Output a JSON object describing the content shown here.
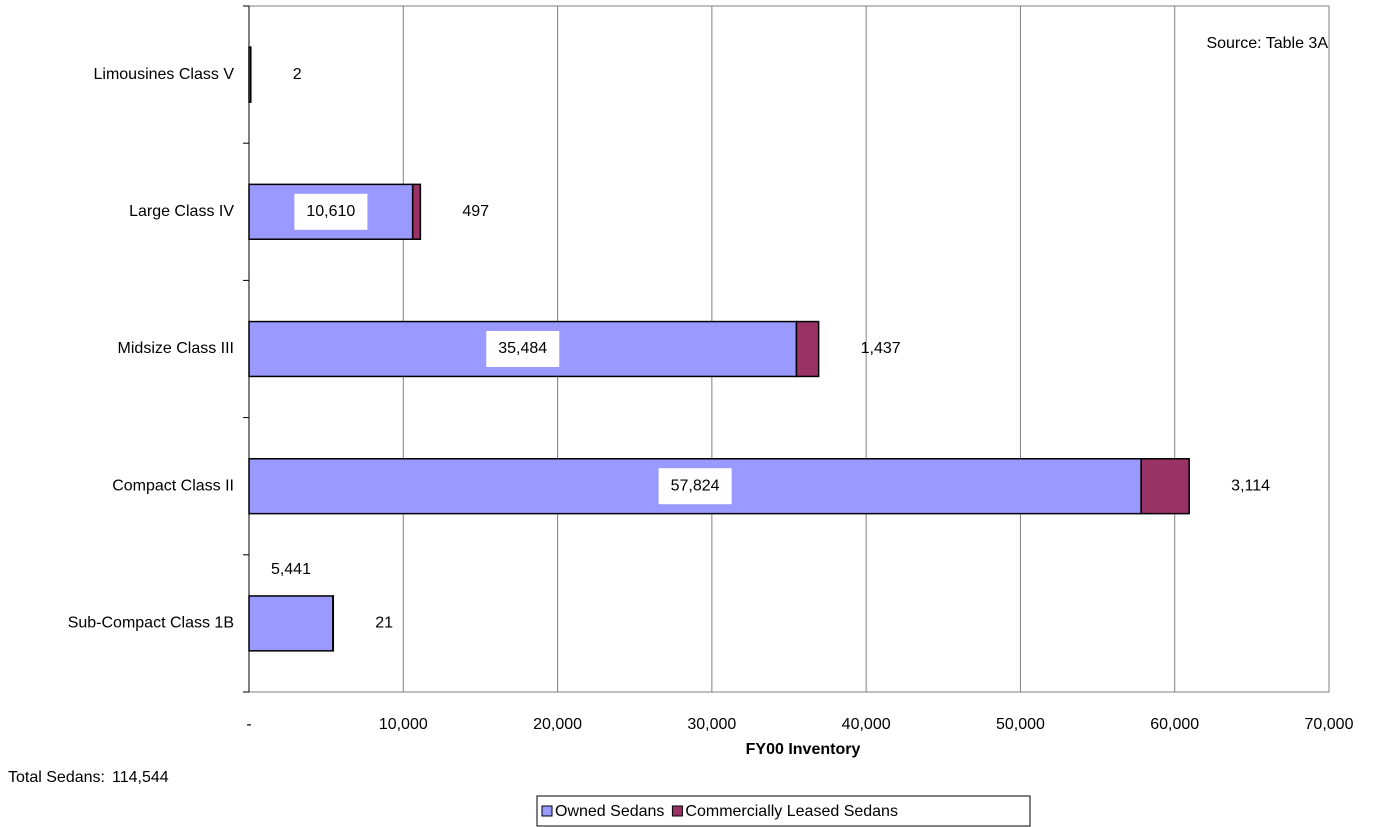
{
  "chart_data": {
    "type": "hbar_stacked",
    "categories": [
      "Sub-Compact Class 1B",
      "Compact Class II",
      "Midsize Class III",
      "Large Class IV",
      "Limousines Class V"
    ],
    "series": [
      {
        "name": "Owned Sedans",
        "color": "#9999ff",
        "values": [
          5441,
          57824,
          35484,
          10610,
          114
        ],
        "value_labels": [
          "5,441",
          "57,824",
          "35,484",
          "10,610",
          null
        ]
      },
      {
        "name": "Commercially Leased Sedans",
        "color": "#993366",
        "values": [
          21,
          3114,
          1437,
          497,
          2
        ],
        "value_labels": [
          "21",
          "3,114",
          "1,437",
          "497",
          "2"
        ]
      }
    ],
    "xlim": [
      0,
      70000
    ],
    "xticks": [
      {
        "value": 0,
        "label": "-"
      },
      {
        "value": 10000,
        "label": "10,000"
      },
      {
        "value": 20000,
        "label": "20,000"
      },
      {
        "value": 30000,
        "label": "30,000"
      },
      {
        "value": 40000,
        "label": "40,000"
      },
      {
        "value": 50000,
        "label": "50,000"
      },
      {
        "value": 60000,
        "label": "60,000"
      },
      {
        "value": 70000,
        "label": "70,000"
      }
    ],
    "xlabel": "FY00 Inventory",
    "annotation": "Source: Table 3A",
    "total_label": "Total Sedans:",
    "total_value": "114,544",
    "grid": true,
    "legend": "bottom"
  }
}
